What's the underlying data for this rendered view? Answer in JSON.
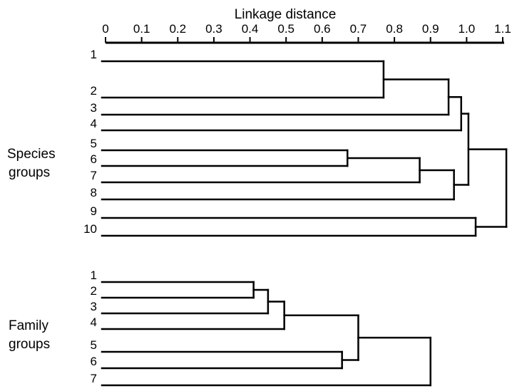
{
  "axis": {
    "title": "Linkage distance",
    "min": 0,
    "max": 1.1,
    "ticks": [
      "0",
      "0.1",
      "0.2",
      "0.3",
      "0.4",
      "0.5",
      "0.6",
      "0.7",
      "0.8",
      "0.9",
      "1.0",
      "1.1"
    ]
  },
  "species": {
    "label_line1": "Species",
    "label_line2": "groups",
    "leaves": [
      "1",
      "2",
      "3",
      "4",
      "5",
      "6",
      "7",
      "8",
      "9",
      "10"
    ],
    "merges": [
      {
        "left": 1,
        "right": 2,
        "height": 0.77
      },
      {
        "left": "1+2",
        "right": 3,
        "height": 0.95
      },
      {
        "left": "1+2+3",
        "right": 4,
        "height": 0.985
      },
      {
        "left": 5,
        "right": 6,
        "height": 0.67
      },
      {
        "left": "5+6",
        "right": 7,
        "height": 0.87
      },
      {
        "left": "5+6+7",
        "right": 8,
        "height": 0.965
      },
      {
        "left": "1-4",
        "right": "5-8",
        "height": 1.005
      },
      {
        "left": 9,
        "right": 10,
        "height": 1.025
      },
      {
        "left": "1-8",
        "right": "9+10",
        "height": 1.11
      }
    ]
  },
  "family": {
    "label_line1": "Family",
    "label_line2": "groups",
    "leaves": [
      "1",
      "2",
      "3",
      "4",
      "5",
      "6",
      "7"
    ],
    "merges": [
      {
        "left": 1,
        "right": 2,
        "height": 0.41
      },
      {
        "left": "1+2",
        "right": 3,
        "height": 0.45
      },
      {
        "left": "1+2+3",
        "right": 4,
        "height": 0.495
      },
      {
        "left": 5,
        "right": 6,
        "height": 0.655
      },
      {
        "left": "1-4",
        "right": "5+6",
        "height": 0.7
      },
      {
        "left": "1-6",
        "right": 7,
        "height": 0.9
      }
    ]
  }
}
